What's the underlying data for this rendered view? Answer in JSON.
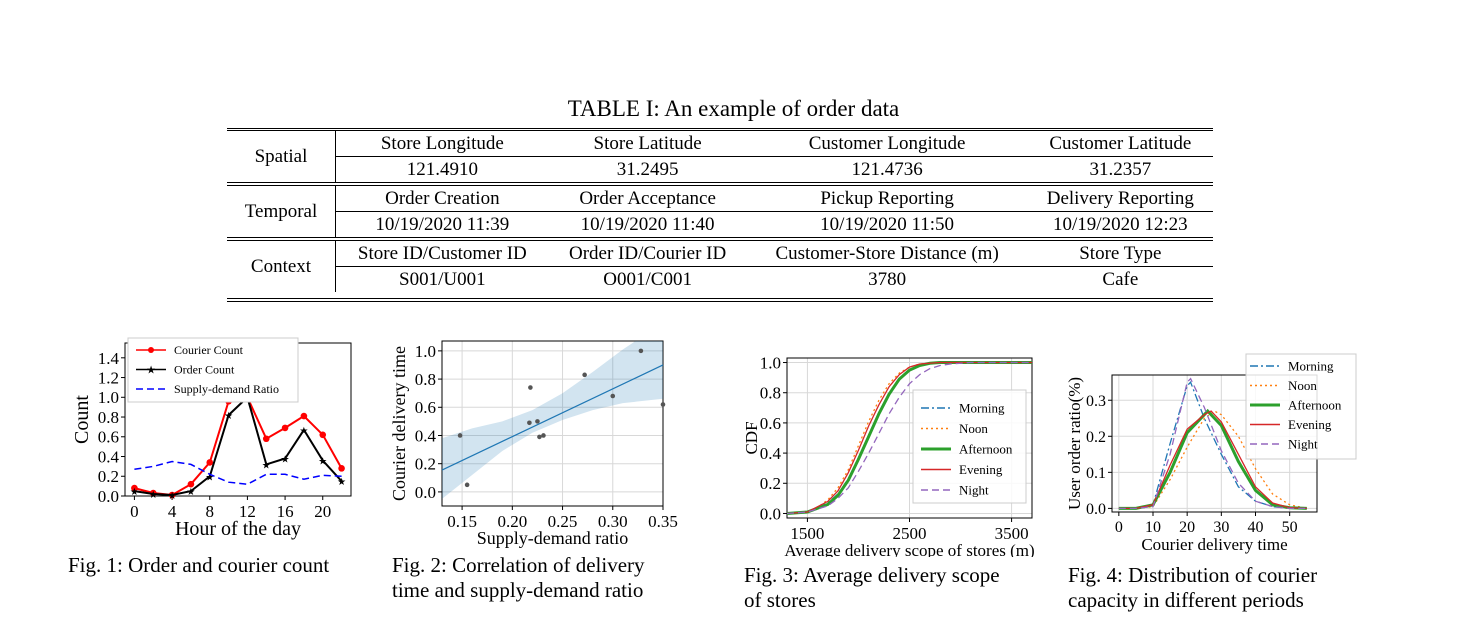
{
  "table": {
    "caption": "TABLE I: An example of order data",
    "rows": [
      {
        "category": "Spatial",
        "headers": [
          "Store Longitude",
          "Store Latitude",
          "Customer Longitude",
          "Customer Latitude"
        ],
        "values": [
          "121.4910",
          "31.2495",
          "121.4736",
          "31.2357"
        ]
      },
      {
        "category": "Temporal",
        "headers": [
          "Order Creation",
          "Order Acceptance",
          "Pickup Reporting",
          "Delivery Reporting"
        ],
        "values": [
          "10/19/2020 11:39",
          "10/19/2020 11:40",
          "10/19/2020 11:50",
          "10/19/2020 12:23"
        ]
      },
      {
        "category": "Context",
        "headers": [
          "Store ID/Customer ID",
          "Order ID/Courier ID",
          "Customer-Store Distance (m)",
          "Store Type"
        ],
        "values": [
          "S001/U001",
          "O001/C001",
          "3780",
          "Cafe"
        ]
      }
    ]
  },
  "figures": {
    "fig1": {
      "caption": "Fig. 1: Order and courier count"
    },
    "fig2": {
      "caption_line1": "Fig. 2: Correlation of delivery",
      "caption_line2": "time and supply-demand ratio"
    },
    "fig3": {
      "caption_line1": "Fig. 3: Average delivery scope",
      "caption_line2": "of stores"
    },
    "fig4": {
      "caption_line1": "Fig. 4: Distribution of courier",
      "caption_line2": "capacity in different periods"
    }
  },
  "chart_data": [
    {
      "type": "line",
      "xlabel": "Hour of the day",
      "ylabel": "Count",
      "xlim": [
        -1,
        23
      ],
      "ylim": [
        0,
        1.55
      ],
      "xticks": [
        0,
        4,
        8,
        12,
        16,
        20
      ],
      "yticks": [
        0.0,
        0.2,
        0.4,
        0.6,
        0.8,
        1.0,
        1.2,
        1.4
      ],
      "legend": "top-left",
      "grid": false,
      "series": [
        {
          "name": "Courier Count",
          "color": "#ff0000",
          "style": "solid-circle",
          "x": [
            0,
            2,
            4,
            6,
            8,
            10,
            12,
            14,
            16,
            18,
            20,
            22
          ],
          "y": [
            0.08,
            0.03,
            0.01,
            0.12,
            0.34,
            0.96,
            1.0,
            0.58,
            0.69,
            0.81,
            0.62,
            0.28
          ]
        },
        {
          "name": "Order Count",
          "color": "#000000",
          "style": "solid-star",
          "x": [
            0,
            2,
            4,
            6,
            8,
            10,
            12,
            14,
            16,
            18,
            20,
            22
          ],
          "y": [
            0.05,
            0.02,
            0.01,
            0.05,
            0.2,
            0.82,
            1.0,
            0.32,
            0.38,
            0.67,
            0.36,
            0.15
          ]
        },
        {
          "name": "Supply-demand Ratio",
          "color": "#0000ff",
          "style": "dashed",
          "x": [
            0,
            2,
            4,
            6,
            8,
            10,
            12,
            14,
            16,
            18,
            20,
            22
          ],
          "y": [
            0.27,
            0.3,
            0.35,
            0.32,
            0.22,
            0.14,
            0.12,
            0.22,
            0.22,
            0.17,
            0.21,
            0.2
          ]
        }
      ]
    },
    {
      "type": "scatter",
      "xlabel": "Supply-demand ratio",
      "ylabel": "Courier delivery time",
      "xlim": [
        0.13,
        0.35
      ],
      "ylim": [
        -0.1,
        1.07
      ],
      "xticks": [
        0.15,
        0.2,
        0.25,
        0.3,
        0.35
      ],
      "yticks": [
        0.0,
        0.2,
        0.4,
        0.6,
        0.8,
        1.0
      ],
      "grid": true,
      "points": {
        "x": [
          0.148,
          0.155,
          0.217,
          0.218,
          0.225,
          0.227,
          0.231,
          0.272,
          0.3,
          0.328,
          0.35
        ],
        "y": [
          0.4,
          0.05,
          0.49,
          0.74,
          0.5,
          0.39,
          0.4,
          0.83,
          0.68,
          1.0,
          0.62
        ]
      },
      "fit": {
        "x": [
          0.13,
          0.35
        ],
        "y": [
          0.155,
          0.9
        ]
      },
      "band": {
        "x": [
          0.13,
          0.16,
          0.19,
          0.22,
          0.25,
          0.28,
          0.31,
          0.35
        ],
        "lower": [
          -0.05,
          0.12,
          0.29,
          0.42,
          0.51,
          0.58,
          0.63,
          0.66
        ],
        "upper": [
          0.38,
          0.45,
          0.5,
          0.58,
          0.7,
          0.85,
          1.01,
          1.2
        ]
      },
      "color": "#1f77b4"
    },
    {
      "type": "line",
      "xlabel": "Average delivery scope of stores (m)",
      "ylabel": "CDF",
      "xlim": [
        1300,
        3700
      ],
      "ylim": [
        -0.03,
        1.03
      ],
      "xticks": [
        1500,
        2500,
        3500
      ],
      "yticks": [
        0.0,
        0.2,
        0.4,
        0.6,
        0.8,
        1.0
      ],
      "grid": true,
      "legend": "right",
      "series": [
        {
          "name": "Morning",
          "color": "#1f77b4",
          "style": "dashdot",
          "x": [
            1300,
            1500,
            1700,
            1800,
            1900,
            2000,
            2100,
            2200,
            2300,
            2400,
            2500,
            2600,
            2700,
            2800,
            3000,
            3700
          ],
          "y": [
            0,
            0.01,
            0.07,
            0.13,
            0.23,
            0.37,
            0.52,
            0.67,
            0.79,
            0.89,
            0.95,
            0.98,
            0.995,
            1.0,
            1.0,
            1.0
          ]
        },
        {
          "name": "Noon",
          "color": "#ff7f0e",
          "style": "dotted",
          "x": [
            1300,
            1500,
            1600,
            1700,
            1800,
            1900,
            2000,
            2100,
            2200,
            2300,
            2400,
            2500,
            2600,
            2800,
            3000,
            3700
          ],
          "y": [
            0,
            0.01,
            0.04,
            0.09,
            0.17,
            0.29,
            0.45,
            0.61,
            0.75,
            0.86,
            0.93,
            0.97,
            0.99,
            1.0,
            1.0,
            1.0
          ]
        },
        {
          "name": "Afternoon",
          "color": "#2ca02c",
          "style": "thick",
          "x": [
            1300,
            1500,
            1700,
            1800,
            1900,
            2000,
            2100,
            2200,
            2300,
            2400,
            2500,
            2600,
            2700,
            2800,
            3000,
            3700
          ],
          "y": [
            0,
            0.01,
            0.06,
            0.12,
            0.22,
            0.36,
            0.51,
            0.66,
            0.79,
            0.89,
            0.95,
            0.98,
            0.995,
            1.0,
            1.0,
            1.0
          ]
        },
        {
          "name": "Evening",
          "color": "#d62728",
          "style": "solid",
          "x": [
            1300,
            1500,
            1700,
            1800,
            1900,
            2000,
            2100,
            2200,
            2300,
            2400,
            2500,
            2600,
            2800,
            3000,
            3700
          ],
          "y": [
            0,
            0.01,
            0.08,
            0.15,
            0.27,
            0.42,
            0.58,
            0.72,
            0.84,
            0.92,
            0.97,
            0.99,
            1.0,
            1.0,
            1.0
          ]
        },
        {
          "name": "Night",
          "color": "#9467bd",
          "style": "dashed",
          "x": [
            1300,
            1500,
            1700,
            1800,
            1900,
            2000,
            2100,
            2200,
            2300,
            2400,
            2500,
            2600,
            2700,
            2800,
            2900,
            3100,
            3700
          ],
          "y": [
            0,
            0.01,
            0.05,
            0.1,
            0.17,
            0.28,
            0.4,
            0.53,
            0.66,
            0.77,
            0.86,
            0.92,
            0.96,
            0.98,
            0.99,
            1.0,
            1.0
          ]
        }
      ]
    },
    {
      "type": "line",
      "xlabel": "Courier delivery time",
      "ylabel": "User order ratio(%)",
      "xlim": [
        -2,
        58
      ],
      "ylim": [
        -0.01,
        0.37
      ],
      "xticks": [
        0,
        10,
        20,
        30,
        40,
        50
      ],
      "yticks": [
        0.0,
        0.1,
        0.2,
        0.3
      ],
      "grid": true,
      "legend": "top-right",
      "series": [
        {
          "name": "Morning",
          "color": "#1f77b4",
          "style": "dashdot",
          "x": [
            0,
            5,
            10,
            15,
            20,
            21,
            25,
            30,
            35,
            40,
            45,
            50,
            55
          ],
          "y": [
            0,
            0,
            0.01,
            0.18,
            0.34,
            0.35,
            0.25,
            0.15,
            0.06,
            0.02,
            0.005,
            0,
            0
          ]
        },
        {
          "name": "Noon",
          "color": "#ff7f0e",
          "style": "dotted",
          "x": [
            0,
            5,
            10,
            15,
            20,
            25,
            28,
            30,
            35,
            40,
            45,
            50,
            55
          ],
          "y": [
            0,
            0,
            0.005,
            0.08,
            0.17,
            0.25,
            0.27,
            0.26,
            0.2,
            0.11,
            0.04,
            0.01,
            0
          ]
        },
        {
          "name": "Afternoon",
          "color": "#2ca02c",
          "style": "thick",
          "x": [
            0,
            5,
            10,
            15,
            20,
            25,
            26,
            30,
            35,
            40,
            45,
            50,
            55
          ],
          "y": [
            0,
            0,
            0.01,
            0.1,
            0.21,
            0.26,
            0.27,
            0.23,
            0.13,
            0.05,
            0.01,
            0.002,
            0
          ]
        },
        {
          "name": "Evening",
          "color": "#d62728",
          "style": "solid",
          "x": [
            0,
            5,
            10,
            15,
            20,
            25,
            27,
            30,
            35,
            40,
            45,
            50,
            55
          ],
          "y": [
            0,
            0,
            0.01,
            0.12,
            0.22,
            0.26,
            0.27,
            0.24,
            0.15,
            0.06,
            0.015,
            0.002,
            0
          ]
        },
        {
          "name": "Night",
          "color": "#9467bd",
          "style": "dashed",
          "x": [
            0,
            5,
            10,
            15,
            20,
            21,
            25,
            30,
            35,
            40,
            45,
            50,
            55
          ],
          "y": [
            0,
            0,
            0.005,
            0.15,
            0.35,
            0.36,
            0.28,
            0.16,
            0.07,
            0.02,
            0.005,
            0,
            0
          ]
        }
      ]
    }
  ]
}
